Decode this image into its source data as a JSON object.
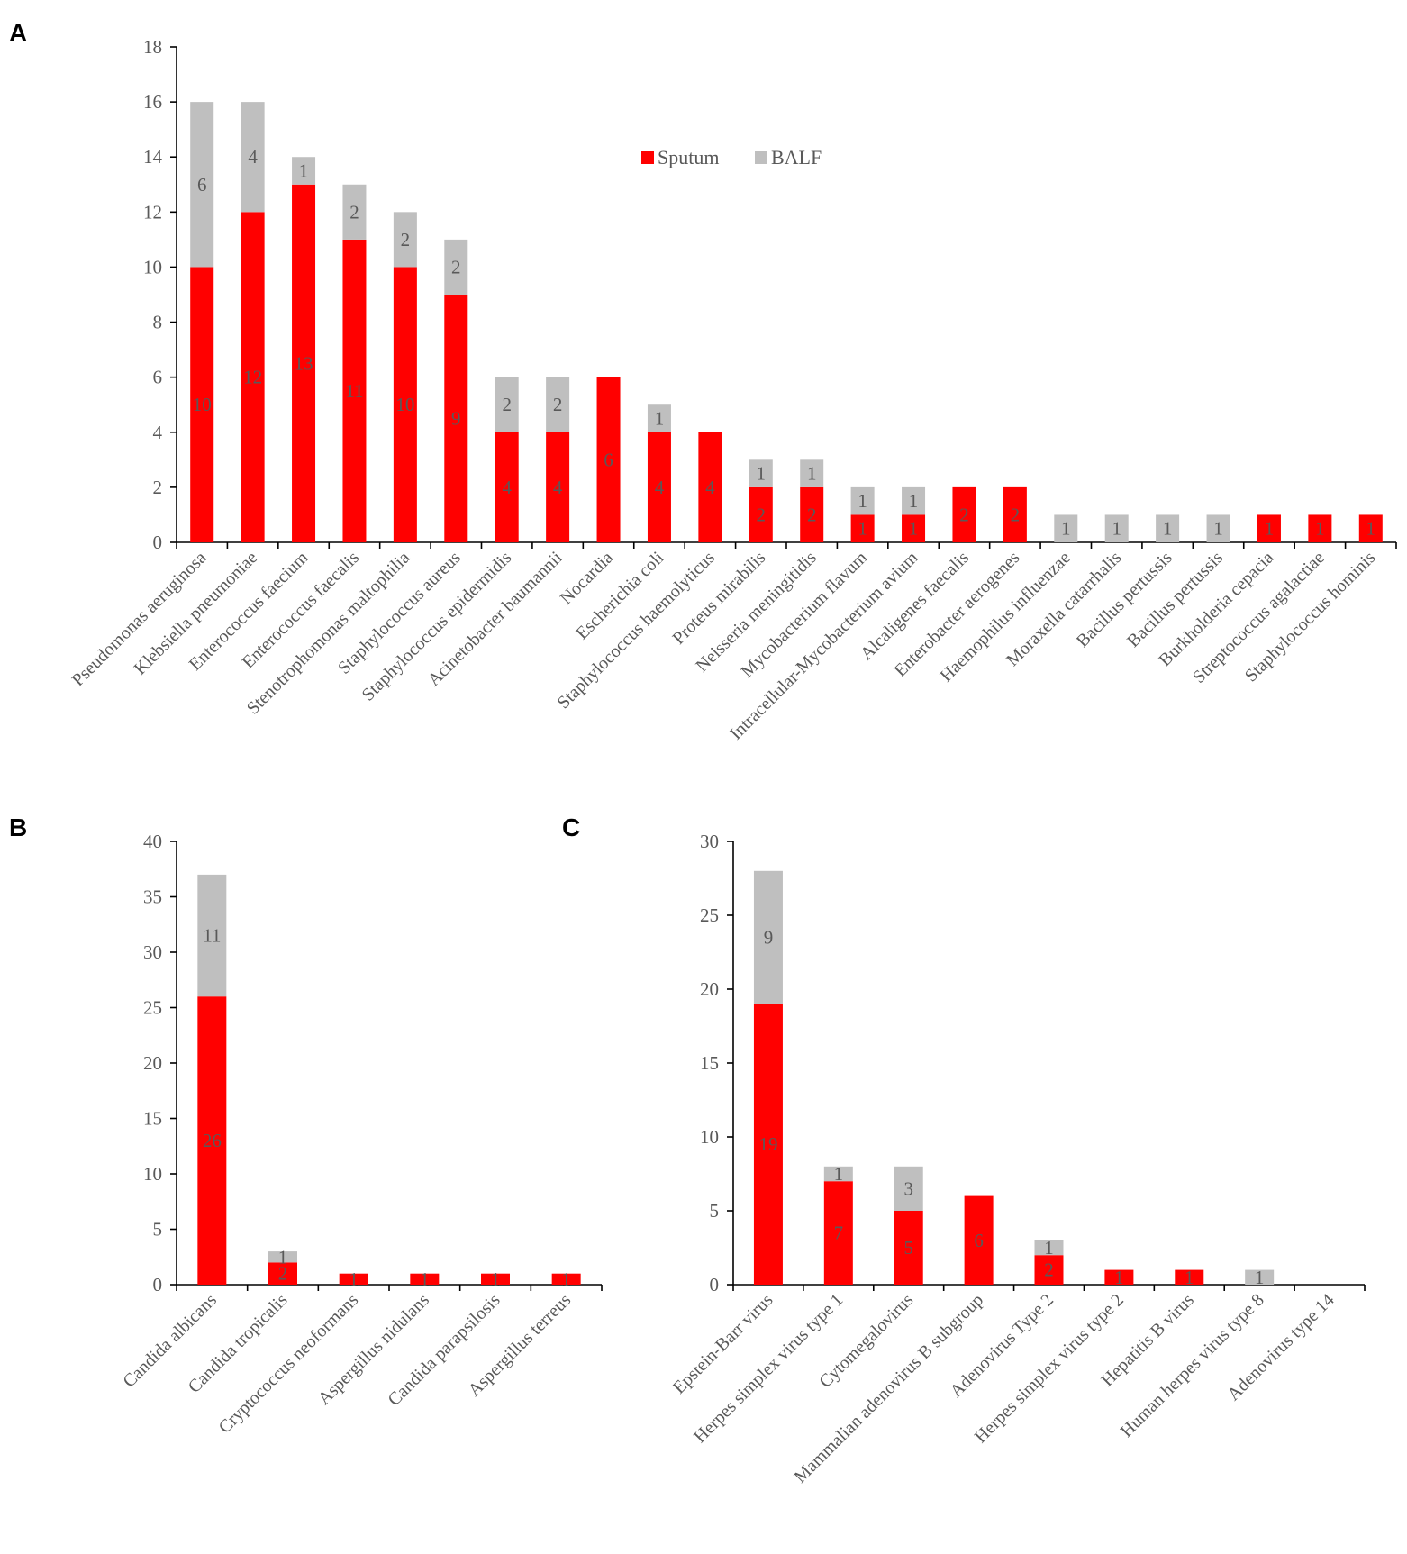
{
  "legend": [
    {
      "name": "Sputum",
      "color": "#ff0000"
    },
    {
      "name": "BALF",
      "color": "#bfbfbf"
    }
  ],
  "chart_data": [
    {
      "panel": "A",
      "type": "bar",
      "stacked": true,
      "ylim": [
        0,
        18
      ],
      "ytick_step": 2,
      "legend_position": "top-center",
      "categories": [
        "Pseudomonas aeruginosa",
        "Klebsiella pneumoniae",
        "Enterococcus faecium",
        "Enterococcus faecalis",
        "Stenotrophomonas maltophilia",
        "Staphylococcus aureus",
        "Staphylococcus epidermidis",
        "Acinetobacter baumannii",
        "Nocardia",
        "Escherichia coli",
        "Staphylococcus haemolyticus",
        "Proteus mirabilis",
        "Neisseria meningitidis",
        "Mycobacterium flavum",
        "Intracellular-Mycobacterium avium",
        "Alcaligenes faecalis",
        "Enterobacter aerogenes",
        "Haemophilus influenzae",
        "Moraxella catarrhalis",
        "Bacillus pertussis",
        "Bacillus pertussis",
        "Burkholderia cepacia",
        "Streptococcus agalactiae",
        "Staphylococcus hominis"
      ],
      "series": [
        {
          "name": "Sputum",
          "values": [
            10,
            12,
            13,
            11,
            10,
            9,
            4,
            4,
            6,
            4,
            4,
            2,
            2,
            1,
            1,
            2,
            2,
            0,
            0,
            0,
            0,
            1,
            1,
            1
          ]
        },
        {
          "name": "BALF",
          "values": [
            6,
            4,
            1,
            2,
            2,
            2,
            2,
            2,
            0,
            1,
            0,
            1,
            1,
            1,
            1,
            0,
            0,
            1,
            1,
            1,
            1,
            0,
            0,
            0
          ]
        }
      ]
    },
    {
      "panel": "B",
      "type": "bar",
      "stacked": true,
      "ylim": [
        0,
        40
      ],
      "ytick_step": 5,
      "categories": [
        "Candida albicans",
        "Candida tropicalis",
        "Cryptococcus neoformans",
        "Aspergillus nidulans",
        "Candida parapsilosis",
        "Aspergillus terreus"
      ],
      "series": [
        {
          "name": "Sputum",
          "values": [
            26,
            2,
            1,
            1,
            1,
            1
          ]
        },
        {
          "name": "BALF",
          "values": [
            11,
            1,
            0,
            0,
            0,
            0
          ]
        }
      ]
    },
    {
      "panel": "C",
      "type": "bar",
      "stacked": true,
      "ylim": [
        0,
        30
      ],
      "ytick_step": 5,
      "categories": [
        "Epstein-Barr virus",
        "Herpes simplex virus type 1",
        "Cytomegalovirus",
        "Mammalian adenovirus B subgroup",
        "Adenovirus Type 2",
        "Herpes simplex virus type 2",
        "Hepatitis B virus",
        "Human herpes virus type 8",
        "Adenovirus type 14"
      ],
      "series": [
        {
          "name": "Sputum",
          "values": [
            19,
            7,
            5,
            6,
            2,
            1,
            1,
            0,
            0
          ]
        },
        {
          "name": "BALF",
          "values": [
            9,
            1,
            3,
            0,
            1,
            0,
            0,
            1,
            0
          ]
        }
      ]
    }
  ]
}
